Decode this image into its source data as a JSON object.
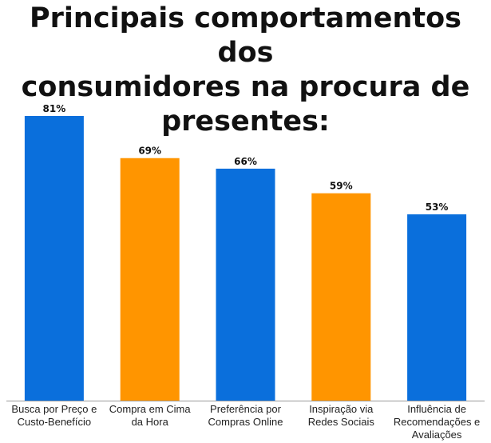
{
  "title_lines": [
    "Principais comportamentos dos",
    "consumidores na procura de",
    "presentes:"
  ],
  "chart_data": {
    "type": "bar",
    "title": "Principais comportamentos dos consumidores na procura de presentes:",
    "categories": [
      [
        "Busca por Preço e",
        "Custo-Benefício"
      ],
      [
        "Compra em Cima",
        "da Hora"
      ],
      [
        "Preferência por",
        "Compras Online"
      ],
      [
        "Inspiração via",
        "Redes Sociais"
      ],
      [
        "Influência de",
        "Recomendações e",
        "Avaliações"
      ]
    ],
    "values": [
      81,
      69,
      66,
      59,
      53
    ],
    "value_labels": [
      "81%",
      "69%",
      "66%",
      "59%",
      "53%"
    ],
    "colors": [
      "#0A6FDC",
      "#FF9500",
      "#0A6FDC",
      "#FF9500",
      "#0A6FDC"
    ],
    "ylim": [
      0,
      81
    ],
    "grid": false,
    "legend": "none"
  }
}
